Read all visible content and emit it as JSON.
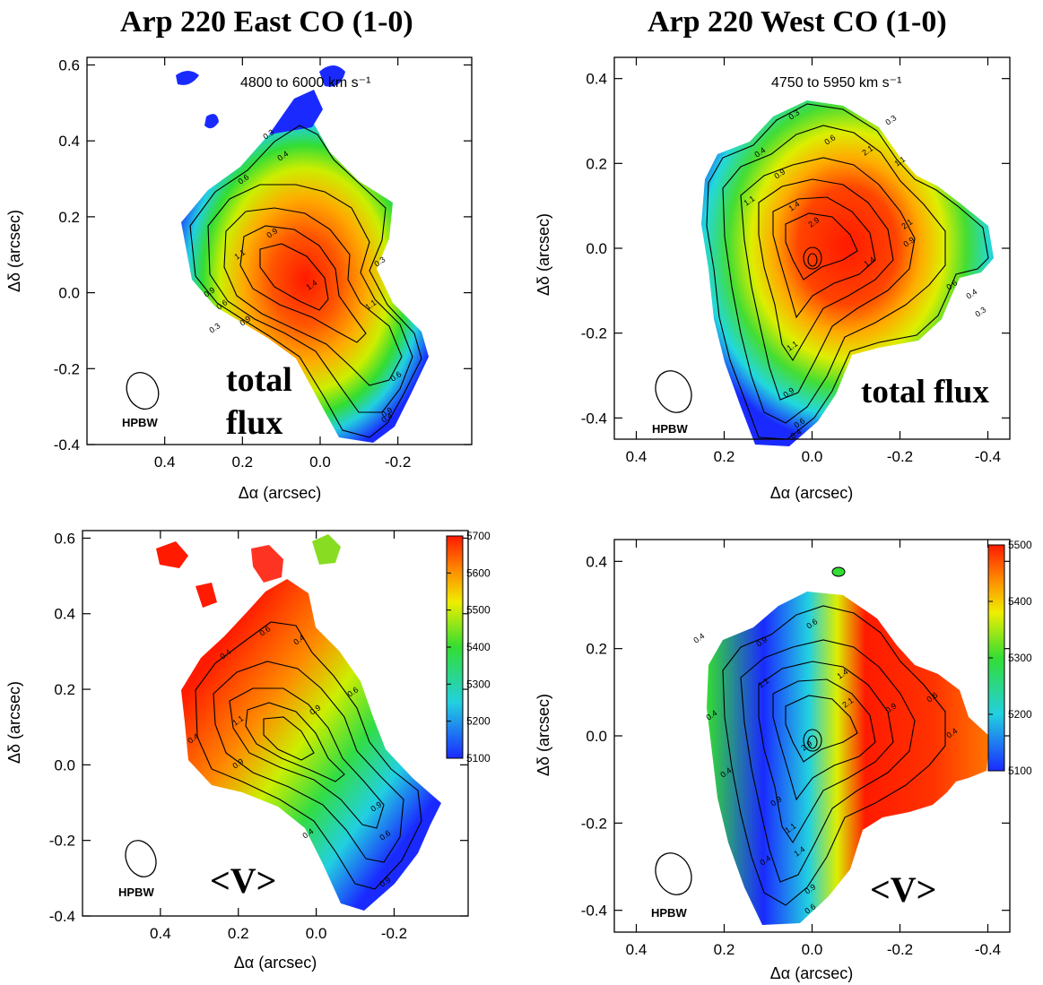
{
  "titles": {
    "east": "Arp 220 East  CO (1-0)",
    "west": "Arp 220 West  CO (1-0)"
  },
  "colors": {
    "red": "#ff1a00",
    "orange": "#ff9900",
    "yellow": "#f0f000",
    "green": "#33dd33",
    "cyan": "#22e0e0",
    "blue": "#1a2aff",
    "axis": "#000000"
  },
  "chart_data": [
    {
      "id": "east-flux",
      "type": "heatmap",
      "xlabel": "Δα (arcsec)",
      "ylabel": "Δδ (arcsec)",
      "xlim": [
        0.6,
        -0.39
      ],
      "ylim": [
        -0.4,
        0.62
      ],
      "xticks": [
        "0.4",
        "0.2",
        "0.0",
        "-0.2"
      ],
      "yticks": [
        "-0.4",
        "-0.2",
        "0.0",
        "0.2",
        "0.4",
        "0.6"
      ],
      "velocity_range": "4800 to 6000 km s⁻¹",
      "annotation": [
        "total",
        "flux"
      ],
      "beam_label": "HPBW",
      "contour_labels": [
        "0.3",
        "0.4",
        "0.6",
        "0.9",
        "1.1",
        "1.4",
        "0.3",
        "0.9",
        "0.6",
        "0.9",
        "1.1",
        "0.6",
        "0.9",
        "0.4",
        "0.3"
      ]
    },
    {
      "id": "west-flux",
      "type": "heatmap",
      "xlabel": "Δα (arcsec)",
      "ylabel": "Δδ (arcsec)",
      "xlim": [
        0.45,
        -0.45
      ],
      "ylim": [
        -0.45,
        0.45
      ],
      "xticks": [
        "0.4",
        "0.2",
        "0.0",
        "-0.2",
        "-0.4"
      ],
      "yticks": [
        "-0.4",
        "-0.2",
        "0.0",
        "0.2",
        "0.4"
      ],
      "velocity_range": "4750 to 5950 km s⁻¹",
      "annotation": [
        "total flux"
      ],
      "beam_label": "HPBW",
      "contour_labels": [
        "0.3",
        "0.4",
        "0.6",
        "0.9",
        "1.1",
        "1.4",
        "2.1",
        "2.9",
        "1.1",
        "2.1",
        "1.4",
        "0.9",
        "0.6",
        "0.4",
        "0.3",
        "1.1",
        "0.9",
        "0.6",
        "0.4",
        "0.3"
      ]
    },
    {
      "id": "east-velocity",
      "type": "heatmap",
      "xlabel": "Δα (arcsec)",
      "ylabel": "Δδ (arcsec)",
      "xlim": [
        0.6,
        -0.39
      ],
      "ylim": [
        -0.4,
        0.62
      ],
      "xticks": [
        "0.4",
        "0.2",
        "0.0",
        "-0.2"
      ],
      "yticks": [
        "-0.4",
        "-0.2",
        "0.0",
        "0.2",
        "0.4",
        "0.6"
      ],
      "annotation": [
        "<V>"
      ],
      "beam_label": "HPBW",
      "colorbar": {
        "min": 5100,
        "max": 5700,
        "ticks": [
          "5700",
          "5600",
          "5500",
          "5400",
          "5300",
          "5200",
          "5100"
        ]
      },
      "contour_labels": [
        "0.4",
        "0.6",
        "1.1",
        "0.9",
        "0.4",
        "0.6",
        "0.9",
        "0.4",
        "0.4",
        "0.9",
        "0.6",
        "0.9"
      ]
    },
    {
      "id": "west-velocity",
      "type": "heatmap",
      "xlabel": "Δα (arcsec)",
      "ylabel": "Δδ (arcsec)",
      "xlim": [
        0.45,
        -0.45
      ],
      "ylim": [
        -0.45,
        0.45
      ],
      "xticks": [
        "0.4",
        "0.2",
        "0.0",
        "-0.2",
        "-0.4"
      ],
      "yticks": [
        "-0.4",
        "-0.2",
        "0.0",
        "0.2",
        "0.4"
      ],
      "annotation": [
        "<V>"
      ],
      "beam_label": "HPBW",
      "colorbar": {
        "min": 5100,
        "max": 5500,
        "ticks": [
          "5500",
          "5400",
          "5300",
          "5200",
          "5100"
        ]
      },
      "contour_labels": [
        "0.4",
        "0.6",
        "0.9",
        "1.1",
        "1.4",
        "2.1",
        "0.9",
        "0.6",
        "0.4",
        "2.9",
        "0.4",
        "0.4",
        "0.9",
        "1.1",
        "1.4",
        "0.9",
        "0.6",
        "0.4"
      ]
    }
  ]
}
